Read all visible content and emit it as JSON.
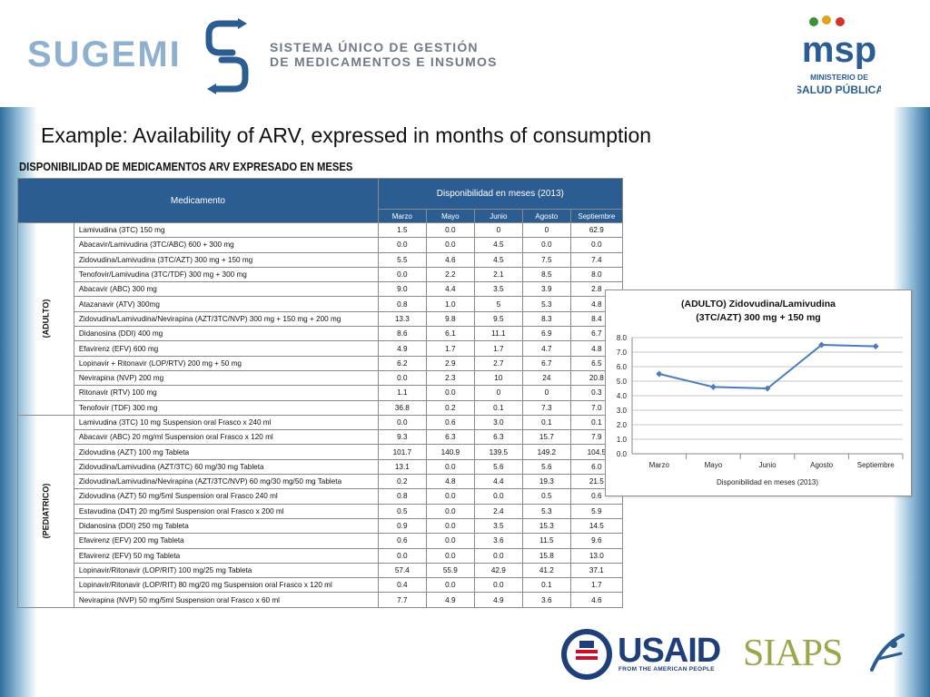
{
  "header": {
    "sugemi_name": "SUGEMI",
    "sugemi_tagline_line1": "SISTEMA ÚNICO DE GESTIÓN",
    "sugemi_tagline_line2": "DE MEDICAMENTOS E INSUMOS",
    "msp_logo_text": "msp",
    "msp_caption_line1": "MINISTERIO DE",
    "msp_caption_line2": "SALUD PÚBLICA"
  },
  "slide_title": "Example: Availability of ARV, expressed in months of consumption",
  "table": {
    "heading": "DISPONIBILIDAD DE MEDICAMENTOS ARV EXPRESADO EN MESES",
    "col_medicamento": "Medicamento",
    "col_disponibilidad": "Disponibilidad en meses (2013)",
    "months": [
      "Marzo",
      "Mayo",
      "Junio",
      "Agosto",
      "Septiembre"
    ],
    "groups": [
      {
        "label": "(ADULTO)",
        "rows": [
          {
            "name": "Lamivudina (3TC) 150 mg",
            "values": [
              "1.5",
              "0.0",
              "0",
              "0",
              "62.9"
            ]
          },
          {
            "name": "Abacavir/Lamivudina (3TC/ABC) 600 + 300 mg",
            "values": [
              "0.0",
              "0.0",
              "4.5",
              "0.0",
              "0.0"
            ]
          },
          {
            "name": "Zidovudina/Lamivudina (3TC/AZT) 300 mg + 150 mg",
            "values": [
              "5.5",
              "4.6",
              "4.5",
              "7.5",
              "7.4"
            ]
          },
          {
            "name": "Tenofovir/Lamivudina (3TC/TDF) 300 mg + 300 mg",
            "values": [
              "0.0",
              "2.2",
              "2.1",
              "8.5",
              "8.0"
            ]
          },
          {
            "name": "Abacavir (ABC) 300 mg",
            "values": [
              "9.0",
              "4.4",
              "3.5",
              "3.9",
              "2.8"
            ]
          },
          {
            "name": "Atazanavir (ATV) 300mg",
            "values": [
              "0.8",
              "1.0",
              "5",
              "5.3",
              "4.8"
            ]
          },
          {
            "name": "Zidovudina/Lamivudina/Nevirapina (AZT/3TC/NVP) 300 mg + 150 mg + 200 mg",
            "values": [
              "13.3",
              "9.8",
              "9.5",
              "8.3",
              "8.4"
            ]
          },
          {
            "name": "Didanosina (DDI) 400 mg",
            "values": [
              "8.6",
              "6.1",
              "11.1",
              "6.9",
              "6.7"
            ]
          },
          {
            "name": "Efavirenz (EFV) 600 mg",
            "values": [
              "4.9",
              "1.7",
              "1.7",
              "4.7",
              "4.8"
            ]
          },
          {
            "name": "Lopinavir + Ritonavir (LOP/RTV) 200 mg + 50 mg",
            "values": [
              "6.2",
              "2.9",
              "2.7",
              "6.7",
              "6.5"
            ]
          },
          {
            "name": "Nevirapina (NVP) 200 mg",
            "values": [
              "0.0",
              "2.3",
              "10",
              "24",
              "20.8"
            ]
          },
          {
            "name": "Ritonavir (RTV) 100 mg",
            "values": [
              "1.1",
              "0.0",
              "0",
              "0",
              "0.3"
            ]
          },
          {
            "name": "Tenofovir (TDF) 300 mg",
            "values": [
              "36.8",
              "0.2",
              "0.1",
              "7.3",
              "7.0"
            ]
          }
        ]
      },
      {
        "label": "(PEDIATRICO)",
        "rows": [
          {
            "name": "Lamivudina (3TC)   10 mg   Suspension oral   Frasco x 240 ml",
            "values": [
              "0.0",
              "0.6",
              "3.0",
              "0.1",
              "0.1"
            ]
          },
          {
            "name": "Abacavir (ABC)   20 mg/ml   Suspension oral   Frasco x 120 ml",
            "values": [
              "9.3",
              "6.3",
              "6.3",
              "15.7",
              "7.9"
            ]
          },
          {
            "name": "Zidovudina (AZT)   100 mg   Tableta",
            "values": [
              "101.7",
              "140.9",
              "139.5",
              "149.2",
              "104.5"
            ]
          },
          {
            "name": "Zidovudina/Lamivudina (AZT/3TC)   60 mg/30 mg   Tableta",
            "values": [
              "13.1",
              "0.0",
              "5.6",
              "5.6",
              "6.0"
            ]
          },
          {
            "name": "Zidovudina/Lamivudina/Nevirapina (AZT/3TC/NVP)   60 mg/30 mg/50 mg   Tableta",
            "values": [
              "0.2",
              "4.8",
              "4.4",
              "19.3",
              "21.5"
            ]
          },
          {
            "name": "Zidovudina (AZT)   50 mg/5ml   Suspension oral   Frasco 240 ml",
            "values": [
              "0.8",
              "0.0",
              "0.0",
              "0.5",
              "0.6"
            ]
          },
          {
            "name": "Estavudina (D4T)   20 mg/5ml Suspension oral   Frasco x 200 ml",
            "values": [
              "0.5",
              "0.0",
              "2.4",
              "5.3",
              "5.9"
            ]
          },
          {
            "name": "Didanosina (DDI)   250 mg   Tableta",
            "values": [
              "0.9",
              "0.0",
              "3.5",
              "15.3",
              "14.5"
            ]
          },
          {
            "name": "Efavirenz (EFV)   200 mg   Tableta",
            "values": [
              "0.6",
              "0.0",
              "3.6",
              "11.5",
              "9.6"
            ]
          },
          {
            "name": "Efavirenz (EFV)   50 mg   Tableta",
            "values": [
              "0.0",
              "0.0",
              "0.0",
              "15.8",
              "13.0"
            ]
          },
          {
            "name": "Lopinavir/Ritonavir (LOP/RIT)   100 mg/25 mg   Tableta",
            "values": [
              "57.4",
              "55.9",
              "42.9",
              "41.2",
              "37.1"
            ]
          },
          {
            "name": "Lopinavir/Ritonavir (LOP/RIT)   80 mg/20 mg   Suspension oral   Frasco x 120 ml",
            "values": [
              "0.4",
              "0.0",
              "0.0",
              "0.1",
              "1.7"
            ]
          },
          {
            "name": "Nevirapina (NVP)   50 mg/5ml   Suspension oral   Frasco x 60 ml",
            "values": [
              "7.7",
              "4.9",
              "4.9",
              "3.6",
              "4.6"
            ]
          }
        ]
      }
    ]
  },
  "chart_data": {
    "type": "line",
    "title": "(ADULTO)   Zidovudina/Lamivudina  (3TC/AZT) 300 mg + 150 mg",
    "categories": [
      "Marzo",
      "Mayo",
      "Junio",
      "Agosto",
      "Septiembre"
    ],
    "series": [
      {
        "values": [
          5.5,
          4.6,
          4.5,
          7.5,
          7.4
        ]
      }
    ],
    "xlabel": "Disponibilidad en meses (2013)",
    "ylabel": "",
    "ylim": [
      0,
      8
    ],
    "yticks": [
      "8.0",
      "7.0",
      "6.0",
      "5.0",
      "4.0",
      "3.0",
      "2.0",
      "1.0",
      "0.0"
    ],
    "grid": true,
    "line_color": "#4a7ebb"
  },
  "footer": {
    "usaid_name": "USAID",
    "usaid_tagline": "FROM THE AMERICAN PEOPLE",
    "siaps_name": "SIAPS"
  }
}
